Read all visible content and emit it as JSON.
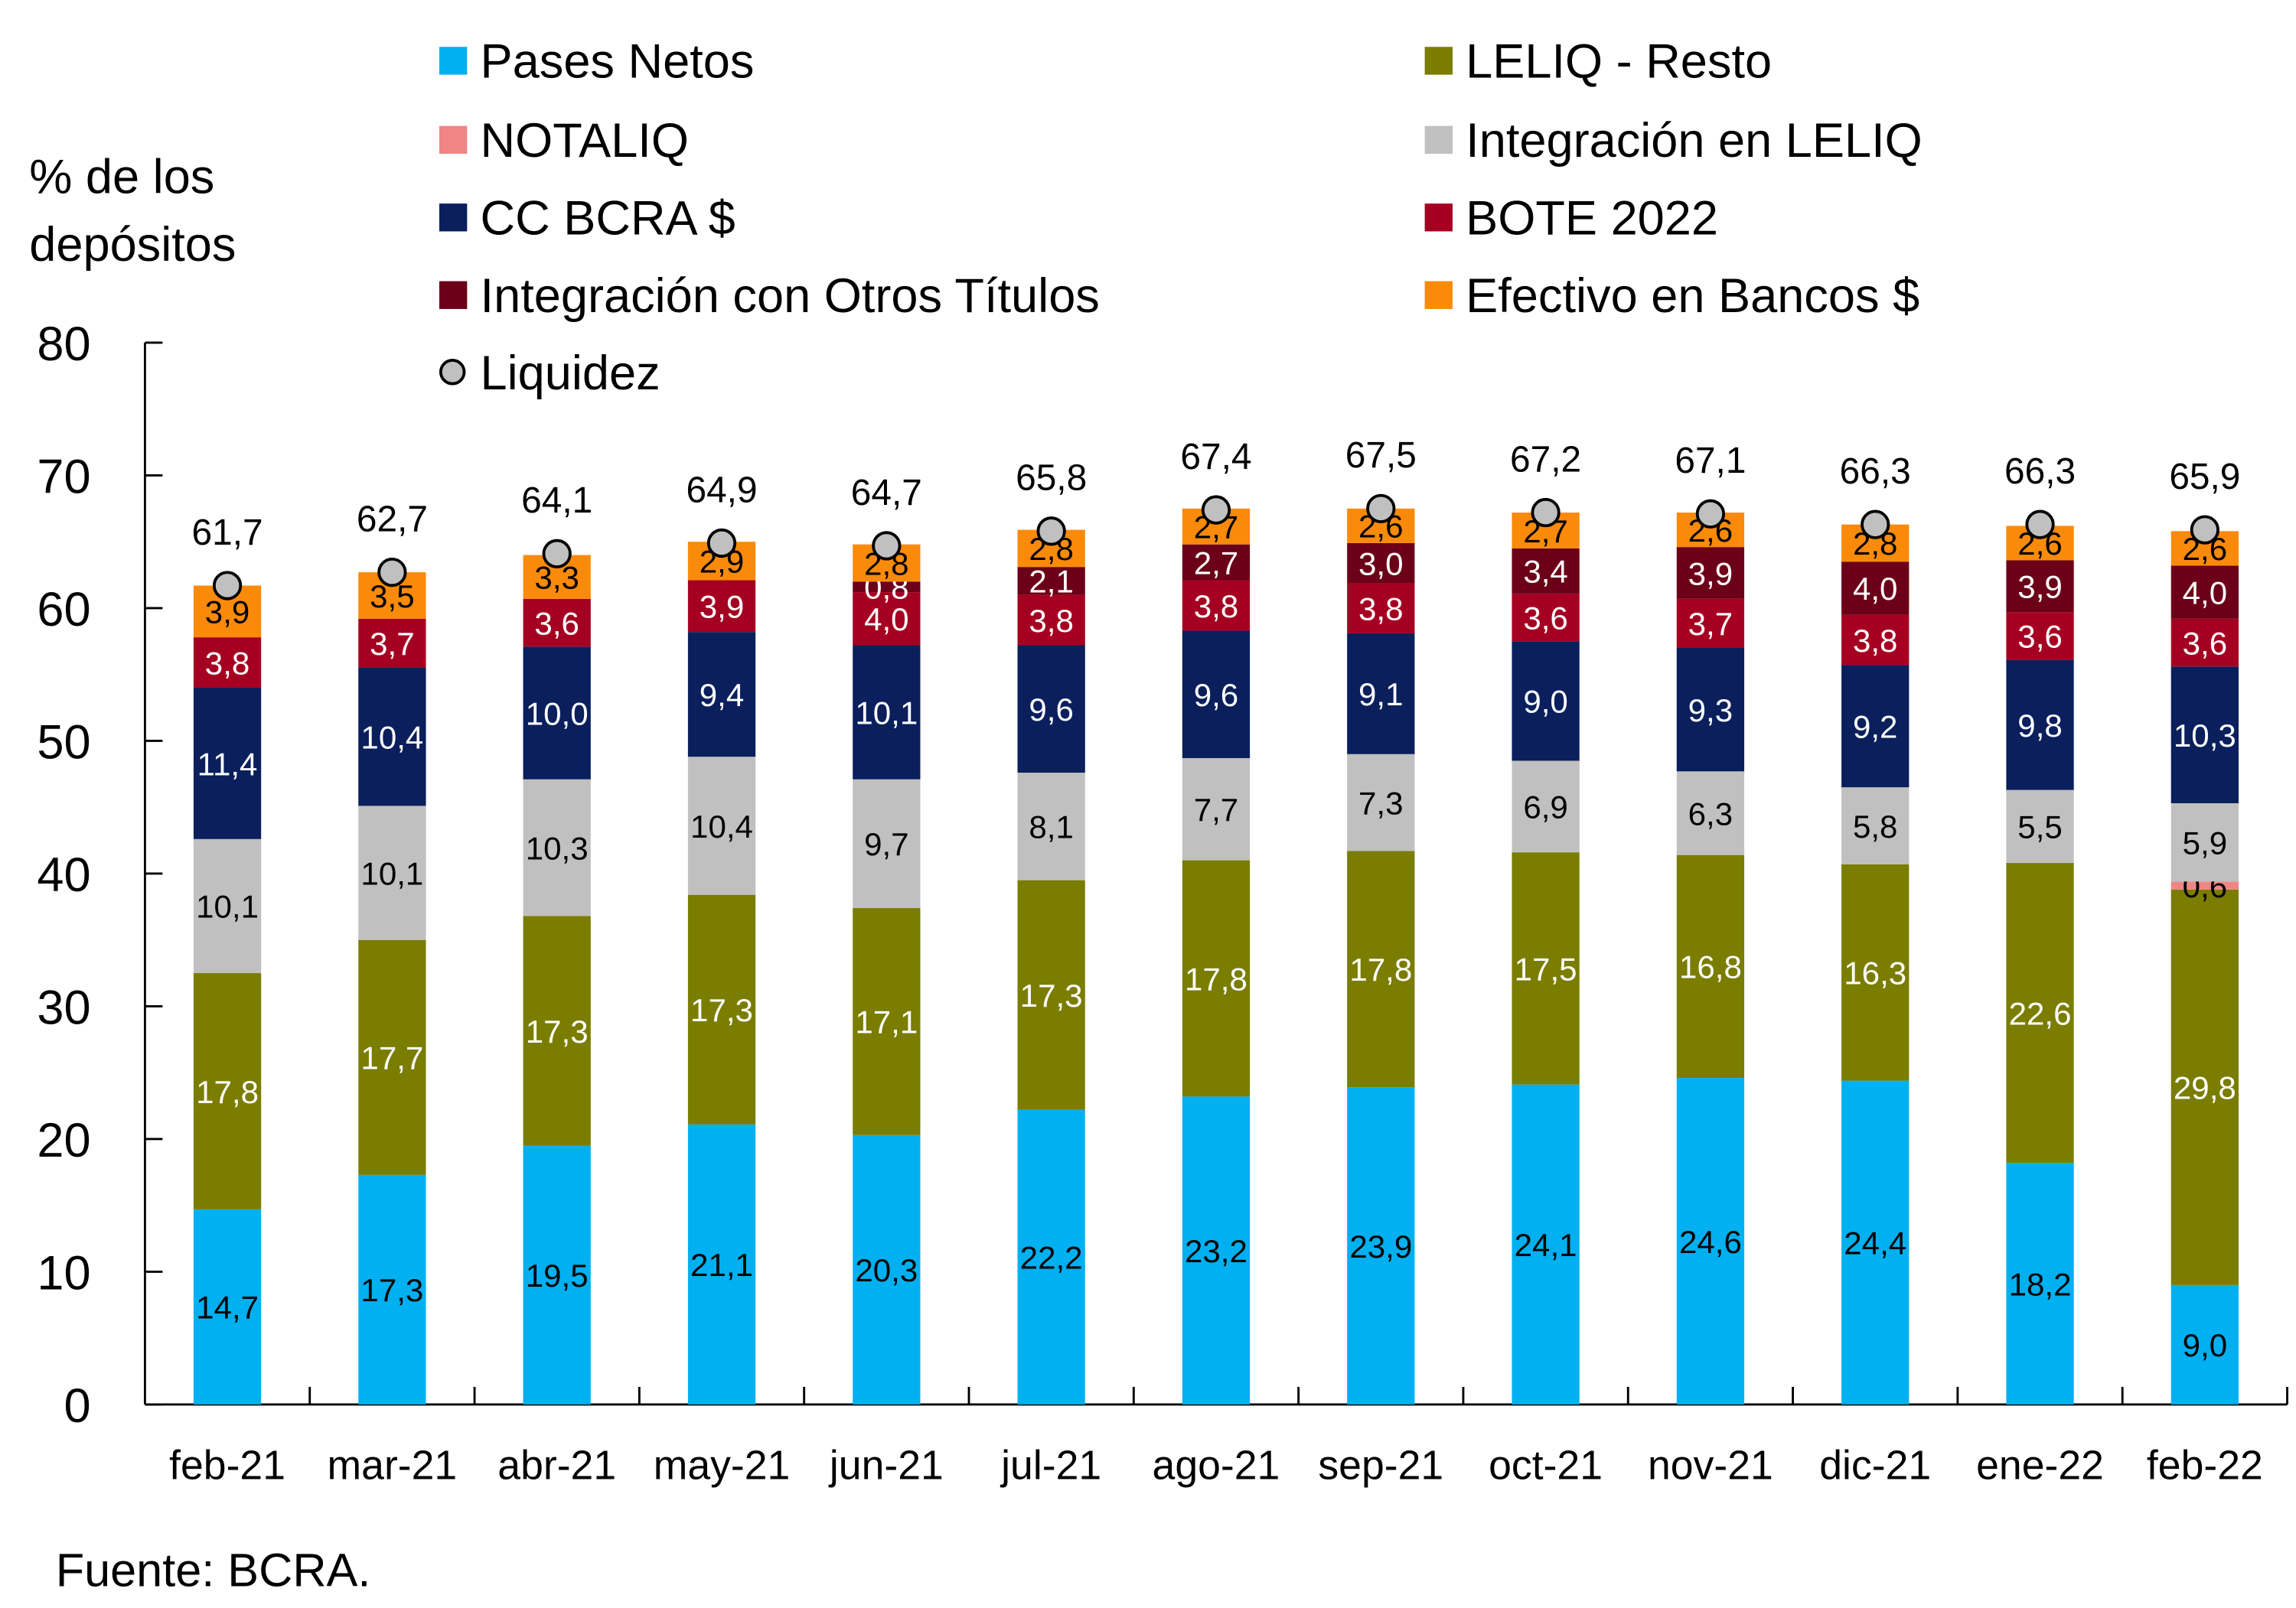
{
  "chart_data": {
    "type": "bar",
    "stacked": true,
    "title": "",
    "ylabel": "% de los depósitos",
    "ylabel_lines": [
      "% de los",
      "depósitos"
    ],
    "xlabel": "",
    "ylim": [
      0,
      80
    ],
    "yticks": [
      0,
      10,
      20,
      30,
      40,
      50,
      60,
      70,
      80
    ],
    "grid": false,
    "legend_position": "top",
    "categories": [
      "feb-21",
      "mar-21",
      "abr-21",
      "may-21",
      "jun-21",
      "jul-21",
      "ago-21",
      "sep-21",
      "oct-21",
      "nov-21",
      "dic-21",
      "ene-22",
      "feb-22"
    ],
    "series": [
      {
        "name": "Pases Netos",
        "color": "#00B0F0",
        "label_color": "#000000",
        "values": [
          14.7,
          17.3,
          19.5,
          21.1,
          20.3,
          22.2,
          23.2,
          23.9,
          24.1,
          24.6,
          24.4,
          18.2,
          9.0
        ]
      },
      {
        "name": "LELIQ - Resto",
        "color": "#7A7D00",
        "label_color": "#FFFFFF",
        "values": [
          17.8,
          17.7,
          17.3,
          17.3,
          17.1,
          17.3,
          17.8,
          17.8,
          17.5,
          16.8,
          16.3,
          22.6,
          29.8
        ]
      },
      {
        "name": "NOTALIQ",
        "color": "#F08585",
        "label_color": "#000000",
        "values": [
          0,
          0,
          0,
          0,
          0,
          0,
          0,
          0,
          0,
          0,
          0,
          0,
          0.6
        ]
      },
      {
        "name": "Integración en LELIQ",
        "color": "#C0C0C0",
        "label_color": "#000000",
        "values": [
          10.1,
          10.1,
          10.3,
          10.4,
          9.7,
          8.1,
          7.7,
          7.3,
          6.9,
          6.3,
          5.8,
          5.5,
          5.9
        ]
      },
      {
        "name": "CC BCRA $",
        "color": "#0A1F5C",
        "label_color": "#FFFFFF",
        "values": [
          11.4,
          10.4,
          10.0,
          9.4,
          10.1,
          9.6,
          9.6,
          9.1,
          9.0,
          9.3,
          9.2,
          9.8,
          10.3
        ]
      },
      {
        "name": "BOTE 2022",
        "color": "#A50021",
        "label_color": "#FFFFFF",
        "values": [
          3.8,
          3.7,
          3.6,
          3.9,
          4.0,
          3.8,
          3.8,
          3.8,
          3.6,
          3.7,
          3.8,
          3.6,
          3.6
        ]
      },
      {
        "name": "Integración con Otros Títulos",
        "color": "#6B0018",
        "label_color": "#FFFFFF",
        "values": [
          0,
          0,
          0,
          0,
          0.8,
          2.1,
          2.7,
          3.0,
          3.4,
          3.9,
          4.0,
          3.9,
          4.0
        ]
      },
      {
        "name": "Efectivo en Bancos $",
        "color": "#FA8A0A",
        "label_color": "#000000",
        "values": [
          3.9,
          3.5,
          3.3,
          2.9,
          2.8,
          2.8,
          2.7,
          2.6,
          2.7,
          2.6,
          2.8,
          2.6,
          2.6
        ]
      }
    ],
    "line_series": {
      "name": "Liquidez",
      "marker": "circle",
      "marker_fill": "#C0C0C0",
      "marker_stroke": "#000000",
      "values": [
        61.7,
        62.7,
        64.1,
        64.9,
        64.7,
        65.8,
        67.4,
        67.5,
        67.2,
        67.1,
        66.3,
        66.3,
        65.9
      ]
    },
    "legend": {
      "left_column": [
        "Pases Netos",
        "NOTALIQ",
        "CC BCRA $",
        "Integración con Otros Títulos",
        "Liquidez"
      ],
      "right_column": [
        "LELIQ - Resto",
        "Integración en LELIQ",
        "BOTE 2022",
        "Efectivo en Bancos $"
      ]
    },
    "decimal_separator": ",",
    "source": "Fuente: BCRA."
  }
}
